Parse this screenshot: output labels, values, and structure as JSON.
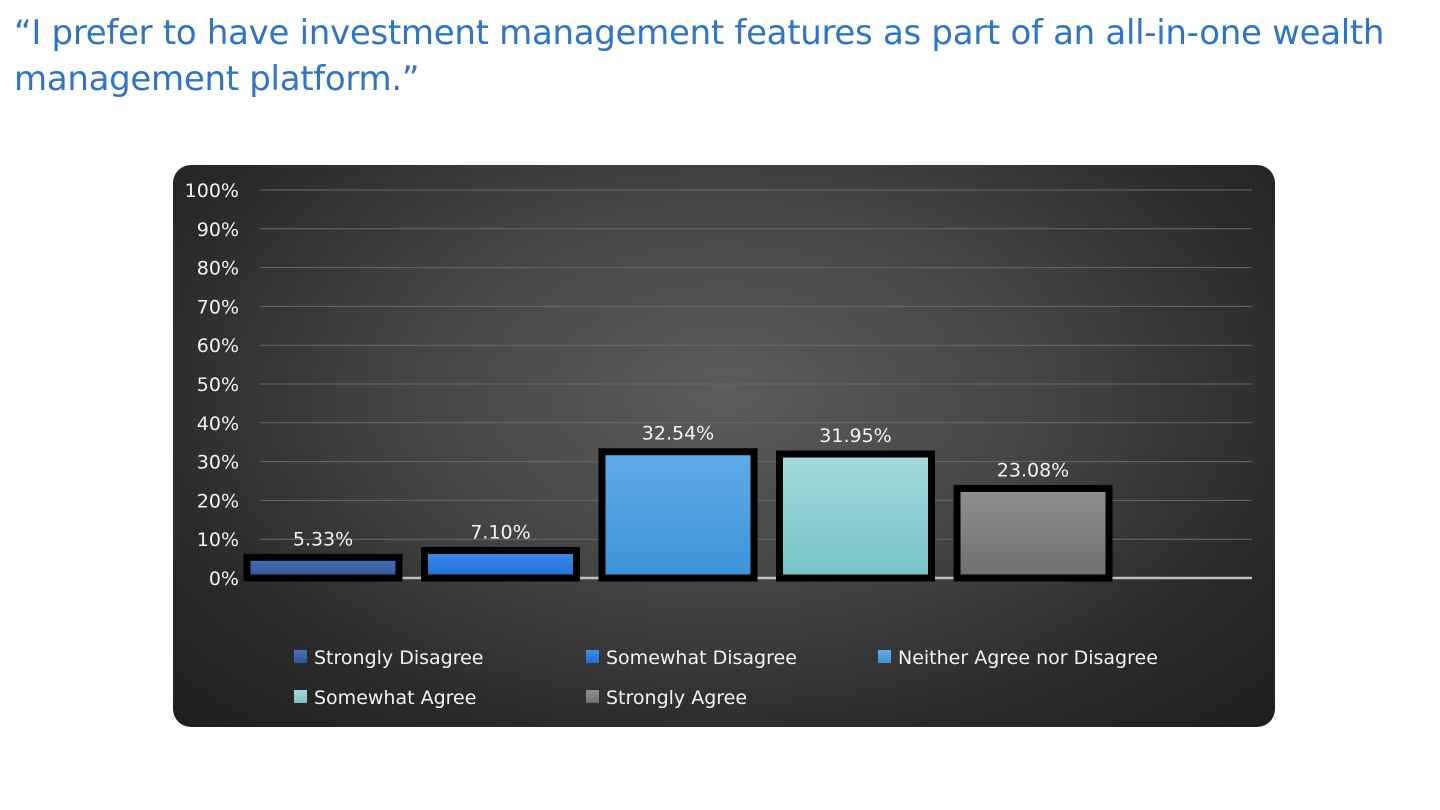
{
  "slide": {
    "title": "“I prefer to have investment management features as part of an all-in-one wealth management platform.”"
  },
  "chart_data": {
    "type": "bar",
    "title": "",
    "xlabel": "",
    "ylabel": "",
    "ylim": [
      0,
      100
    ],
    "y_ticks": [
      "0%",
      "10%",
      "20%",
      "30%",
      "40%",
      "50%",
      "60%",
      "70%",
      "80%",
      "90%",
      "100%"
    ],
    "grid": true,
    "legend_position": "bottom",
    "series": [
      {
        "name": "Strongly Disagree",
        "value": 5.33,
        "label": "5.33%",
        "color": "#2f5597",
        "color_light": "#4a72b8"
      },
      {
        "name": "Somewhat Disagree",
        "value": 7.1,
        "label": "7.10%",
        "color": "#1f6fd6",
        "color_light": "#3f8be6"
      },
      {
        "name": "Neither Agree nor Disagree",
        "value": 32.54,
        "label": "32.54%",
        "color": "#3d93d9",
        "color_light": "#62aae6"
      },
      {
        "name": "Somewhat Agree",
        "value": 31.95,
        "label": "31.95%",
        "color": "#75c2c6",
        "color_light": "#a3dbdc"
      },
      {
        "name": "Strongly Agree",
        "value": 23.08,
        "label": "23.08%",
        "color": "#6f6f6f",
        "color_light": "#8f8f8f"
      }
    ],
    "colors": {
      "gridline": "#6a6a6a",
      "baseline": "#bfbfbf",
      "bar_outline": "#000000",
      "text": "#f2f2f2"
    }
  }
}
